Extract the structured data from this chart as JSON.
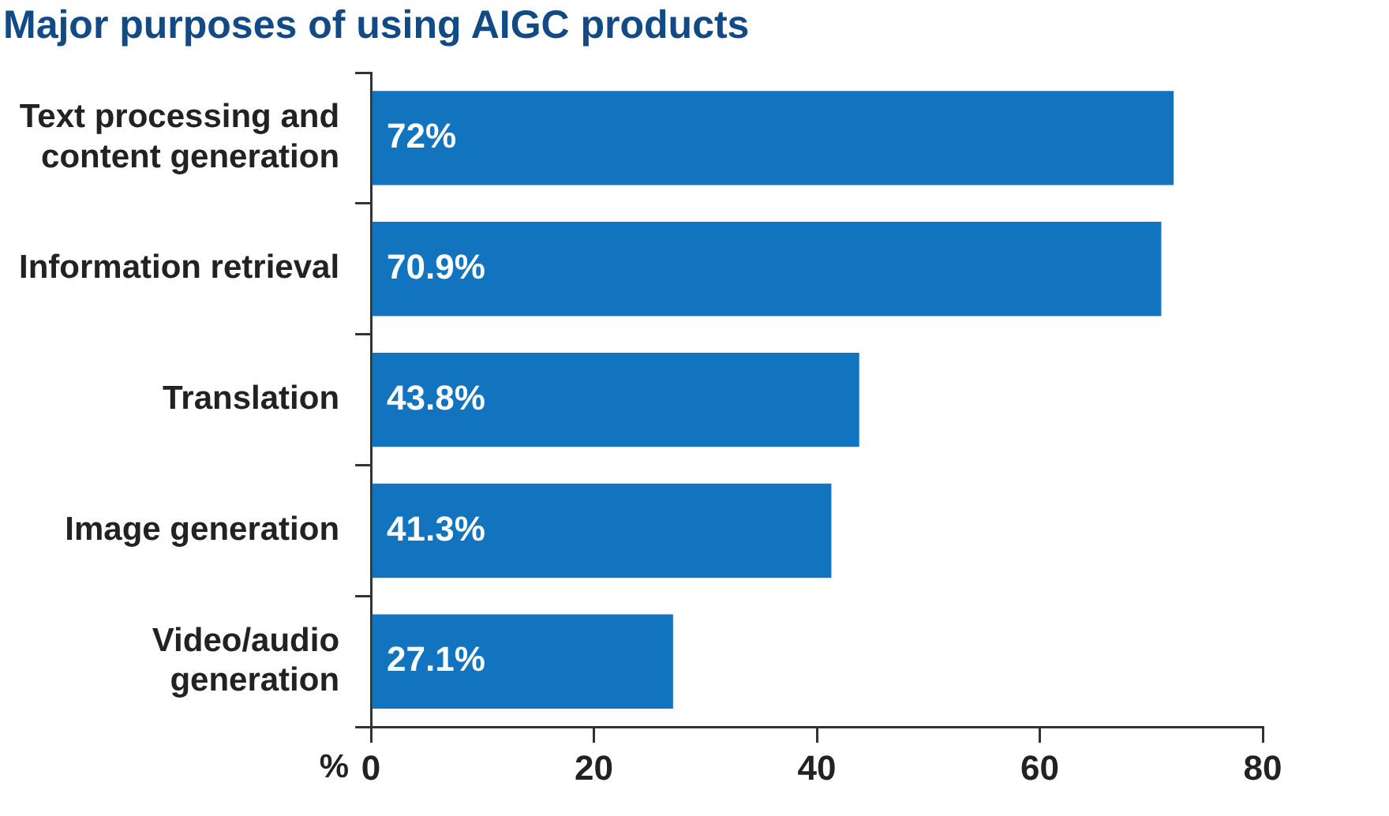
{
  "chart_data": {
    "type": "bar",
    "orientation": "horizontal",
    "title": "Major purposes of using AIGC products",
    "xlabel": "%",
    "categories": [
      "Text processing and content generation",
      "Information retrieval",
      "Translation",
      "Image generation",
      "Video/audio generation"
    ],
    "values": [
      72,
      70.9,
      43.8,
      41.3,
      27.1
    ],
    "color": "#1273bf",
    "value_labels": [
      "72%",
      "70.9%",
      "43.8%",
      "41.3%",
      "27.1%"
    ],
    "xlim": [
      0,
      80
    ],
    "xticks": [
      0,
      20,
      40,
      60,
      80
    ],
    "grid": false,
    "legend": false
  }
}
